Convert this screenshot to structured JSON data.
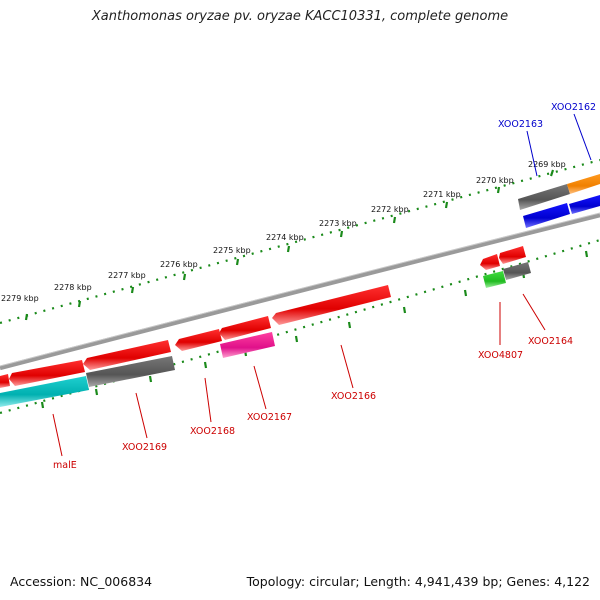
{
  "title": "Xanthomonas oryzae pv. oryzae KACC10331, complete genome",
  "footer": {
    "accession": "Accession: NC_006834",
    "topology": "Topology: circular; Length: 4,941,439 bp; Genes: 4,122"
  },
  "colors": {
    "forward_gene": "#ff0000",
    "gray_feature": "#646464",
    "blue_feature": "#0000ee",
    "orange_feature": "#ff8c00",
    "cyan_feature": "#00c0c0",
    "magenta_feature": "#ff1493",
    "green_feature": "#22cc22",
    "red_label": "#cc0000",
    "blue_label": "#0000cc",
    "tick_green": "#1a8a1a",
    "backbone": "#808080"
  },
  "ticks": [
    {
      "label": "2269 kbp"
    },
    {
      "label": "2270 kbp"
    },
    {
      "label": "2271 kbp"
    },
    {
      "label": "2272 kbp"
    },
    {
      "label": "2273 kbp"
    },
    {
      "label": "2274 kbp"
    },
    {
      "label": "2275 kbp"
    },
    {
      "label": "2276 kbp"
    },
    {
      "label": "2277 kbp"
    },
    {
      "label": "2278 kbp"
    },
    {
      "label": "2279 kbp"
    }
  ],
  "gene_labels": [
    {
      "text": "XOO2162",
      "color": "blue"
    },
    {
      "text": "XOO2163",
      "color": "blue"
    },
    {
      "text": "XOO2164",
      "color": "red"
    },
    {
      "text": "XOO4807",
      "color": "red"
    },
    {
      "text": "XOO2166",
      "color": "red"
    },
    {
      "text": "XOO2167",
      "color": "red"
    },
    {
      "text": "XOO2168",
      "color": "red"
    },
    {
      "text": "XOO2169",
      "color": "red"
    },
    {
      "text": "malE",
      "color": "red"
    }
  ]
}
